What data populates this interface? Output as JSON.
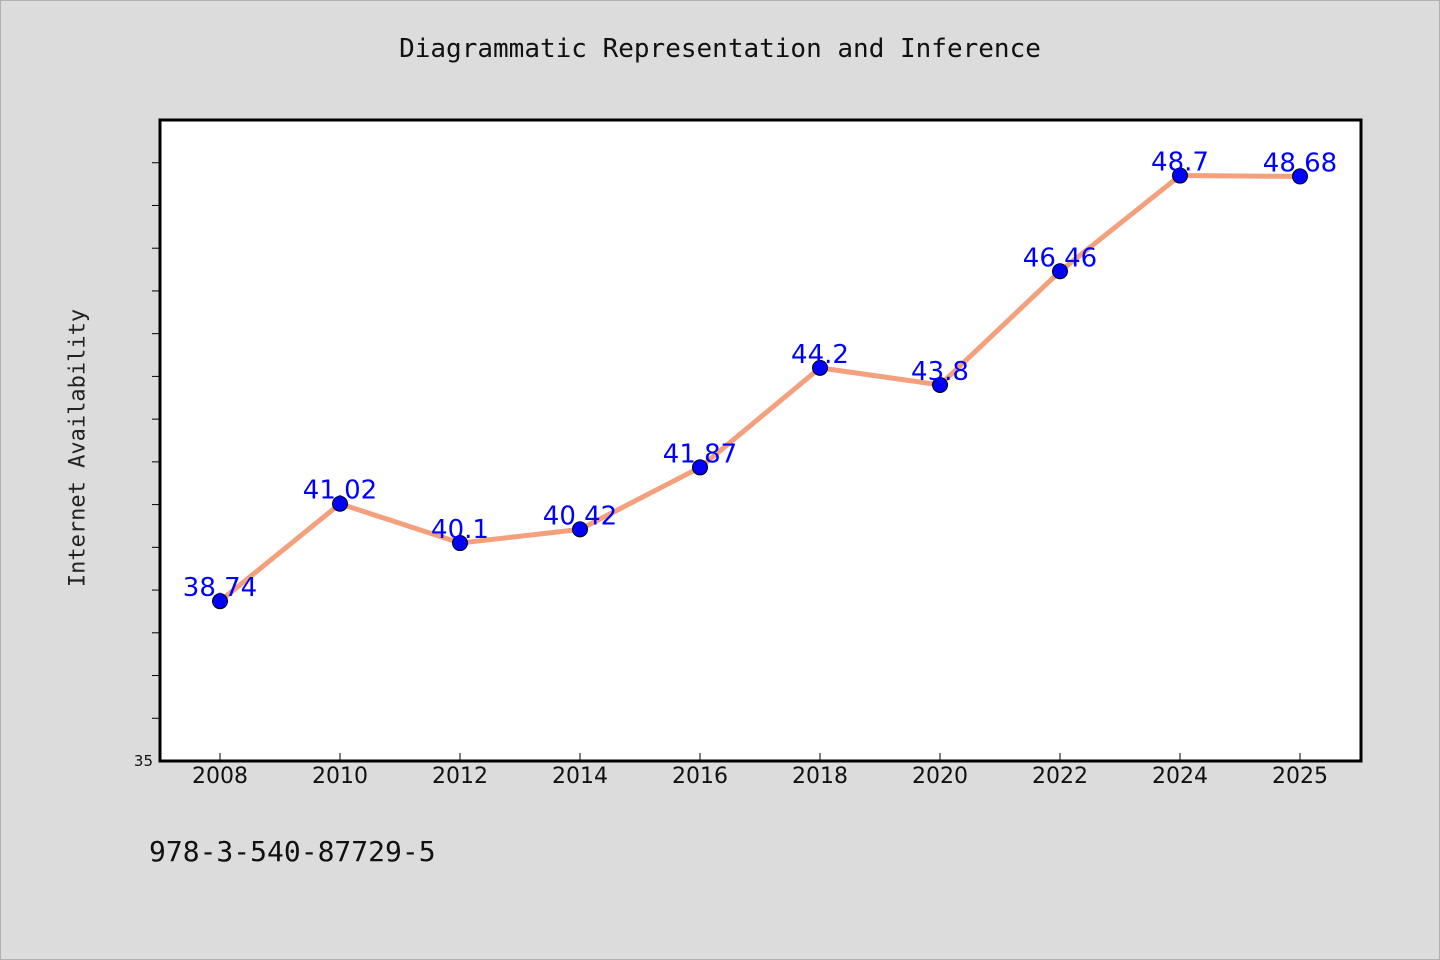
{
  "chart_data": {
    "type": "line",
    "title": "Diagrammatic Representation and Inference",
    "xlabel": "",
    "ylabel": "Internet Availability",
    "categories": [
      "2008",
      "2010",
      "2012",
      "2014",
      "2016",
      "2018",
      "2020",
      "2022",
      "2024",
      "2025"
    ],
    "values": [
      38.74,
      41.02,
      40.1,
      40.42,
      41.87,
      44.2,
      43.8,
      46.46,
      48.7,
      48.68
    ],
    "data_labels": [
      "38.74",
      "41.02",
      "40.1",
      "40.42",
      "41.87",
      "44.2",
      "43.8",
      "46.46",
      "48.7",
      "48.68"
    ],
    "y_axis_label_shown": "35",
    "ylim": [
      35,
      50
    ],
    "line_color": "#f4a07c",
    "marker_color": "#0000ff",
    "label_color": "#0000ff",
    "grid": false,
    "legend": "none"
  },
  "footer": {
    "isbn": "978-3-540-87729-5"
  }
}
